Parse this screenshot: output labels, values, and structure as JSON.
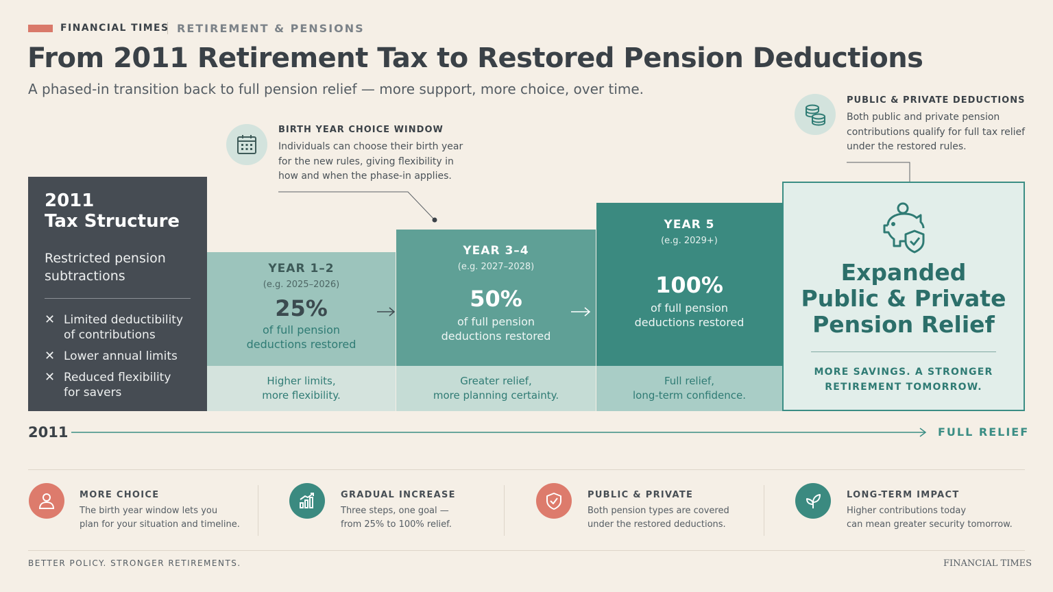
{
  "header": {
    "brand": "FINANCIAL TIMES",
    "section": "RETIREMENT & PENSIONS",
    "title": "From 2011 Retirement Tax to Restored Pension Deductions",
    "subtitle": "A phased-in transition back to full pension relief — more support, more choice, over time."
  },
  "callouts": {
    "birth_year": {
      "icon": "calendar-icon",
      "title": "BIRTH YEAR CHOICE WINDOW",
      "lines": [
        "Individuals can choose their birth year",
        "for the new rules, giving flexibility in",
        "how and when the phase-in applies."
      ]
    },
    "public_private": {
      "icon": "coins-icon",
      "title": "PUBLIC & PRIVATE DEDUCTIONS",
      "lines": [
        "Both public and private pension",
        "contributions qualify for full tax relief",
        "under the restored rules."
      ]
    }
  },
  "base": {
    "title_1": "2011",
    "title_2": "Tax Structure",
    "sub_1": "Restricted pension",
    "sub_2": "subtractions",
    "items": [
      {
        "line1": "Limited deductibility",
        "line2": "of contributions"
      },
      {
        "line1": "Lower annual limits",
        "line2": ""
      },
      {
        "line1": "Reduced flexibility",
        "line2": "for savers"
      }
    ],
    "bullet_glyph": "✕"
  },
  "steps": [
    {
      "year": "YEAR 1–2",
      "example": "(e.g. 2025–2026)",
      "percent": "25%",
      "desc_1": "of full pension",
      "desc_2": "deductions restored",
      "foot_1": "Higher limits,",
      "foot_2": "more flexibility.",
      "color": "#9cc4bc",
      "foot_color": "#d4e3dd"
    },
    {
      "year": "YEAR 3–4",
      "example": "(e.g. 2027–2028)",
      "percent": "50%",
      "desc_1": "of full pension",
      "desc_2": "deductions restored",
      "foot_1": "Greater relief,",
      "foot_2": "more planning certainty.",
      "color": "#5fa096",
      "foot_color": "#c5dcd5"
    },
    {
      "year": "YEAR 5",
      "example": "(e.g. 2029+)",
      "percent": "100%",
      "desc_1": "of full pension",
      "desc_2": "deductions restored",
      "foot_1": "Full relief,",
      "foot_2": "long-term confidence.",
      "color": "#3b8a80",
      "foot_color": "#a9cdc6"
    }
  ],
  "final": {
    "icon": "piggy-bank-shield-icon",
    "title_1": "Expanded",
    "title_2": "Public & Private",
    "title_3": "Pension Relief",
    "tag_1": "MORE SAVINGS. A STRONGER",
    "tag_2": "RETIREMENT TOMORROW."
  },
  "timeline": {
    "start": "2011",
    "end": "FULL RELIEF"
  },
  "benefits": [
    {
      "icon": "person-icon",
      "title": "MORE CHOICE",
      "line1": "The birth year window lets you",
      "line2": "plan for your situation and timeline.",
      "color": "#dd7b6c"
    },
    {
      "icon": "bar-chart-icon",
      "title": "GRADUAL INCREASE",
      "line1": "Three steps, one goal —",
      "line2": "from 25% to 100% relief.",
      "color": "#3b8a80"
    },
    {
      "icon": "shield-check-icon",
      "title": "PUBLIC & PRIVATE",
      "line1": "Both pension types are covered",
      "line2": "under the restored deductions.",
      "color": "#dd7b6c"
    },
    {
      "icon": "leaf-icon",
      "title": "LONG-TERM IMPACT",
      "line1": "Higher contributions today",
      "line2": "can mean greater security tomorrow.",
      "color": "#3b8a80"
    }
  ],
  "footer": {
    "left": "BETTER POLICY. STRONGER RETIREMENTS.",
    "right": "FINANCIAL TIMES"
  }
}
